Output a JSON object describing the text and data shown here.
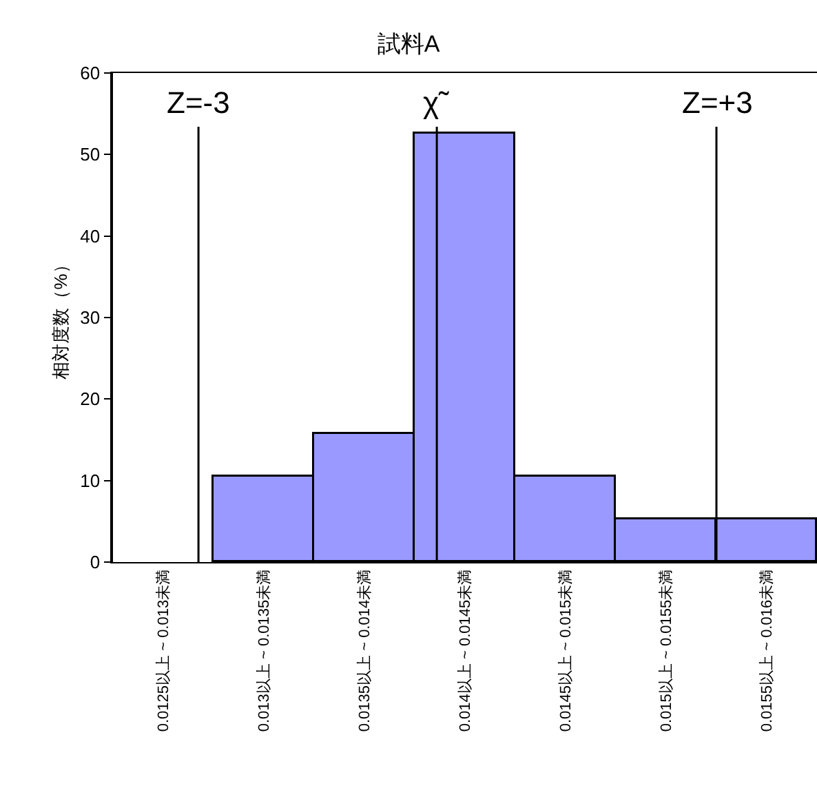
{
  "chart_data": {
    "type": "bar",
    "title": "試料A",
    "ylabel": "相対度数（%）",
    "categories": [
      "0.0125以上 ~ 0.013未満",
      "0.013以上 ~ 0.0135未満",
      "0.0135以上 ~ 0.014未満",
      "0.014以上 ~ 0.0145未満",
      "0.0145以上 ~ 0.015未満",
      "0.015以上 ~ 0.0155未満",
      "0.0155以上 ~ 0.016未満"
    ],
    "values": [
      0,
      10.5,
      15.8,
      52.6,
      10.5,
      5.3,
      5.3
    ],
    "color": "#9999ff",
    "ylim": [
      0,
      60
    ],
    "yticks": [
      0,
      10,
      20,
      30,
      40,
      50,
      60
    ],
    "annotations": [
      "Z=-3",
      "χ̃",
      "Z=+3"
    ],
    "grid": false
  }
}
